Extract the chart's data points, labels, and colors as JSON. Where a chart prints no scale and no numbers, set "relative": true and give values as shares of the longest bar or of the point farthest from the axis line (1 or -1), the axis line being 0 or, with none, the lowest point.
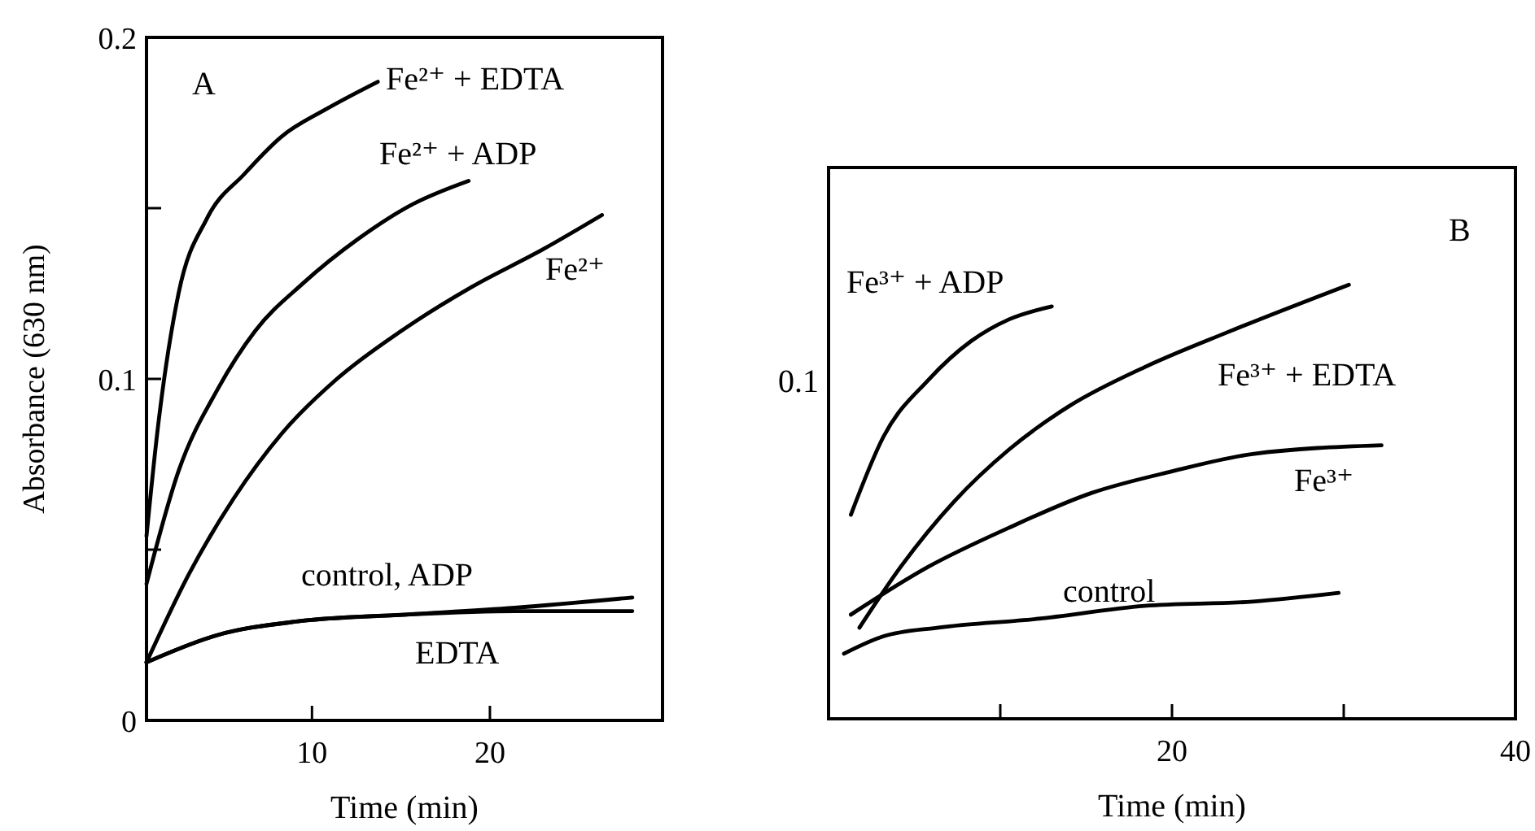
{
  "chart_data": [
    {
      "type": "line",
      "xlabel": "Time (min)",
      "ylabel": "Absorbance (630 nm)",
      "xlim": [
        0.7,
        29.7
      ],
      "ylim": [
        0,
        0.2
      ],
      "xticks": [
        10,
        20
      ],
      "yticks": [
        0,
        {
          "value": 0.05,
          "label": null
        },
        0.1,
        {
          "value": 0.15,
          "label": null
        },
        0.2
      ],
      "annotations": [
        "A"
      ],
      "series": [
        {
          "name": "Fe²⁺ + EDTA",
          "color": "#000000",
          "x": [
            0.7,
            1.3,
            2.5,
            4.1,
            6.2,
            8.3,
            10.8,
            13.7
          ],
          "values": [
            0.054,
            0.084,
            0.125,
            0.147,
            0.16,
            0.171,
            0.179,
            0.187
          ]
        },
        {
          "name": "Fe²⁺ + ADP",
          "color": "#000000",
          "x": [
            0.7,
            2.5,
            4.7,
            6.8,
            9.5,
            12.6,
            15.6,
            18.8
          ],
          "values": [
            0.04,
            0.073,
            0.097,
            0.114,
            0.128,
            0.141,
            0.151,
            0.158
          ]
        },
        {
          "name": "Fe²⁺",
          "color": "#000000",
          "x": [
            0.7,
            3.1,
            5.6,
            8.3,
            11.4,
            15.0,
            19.0,
            23.0,
            26.3
          ],
          "values": [
            0.017,
            0.043,
            0.065,
            0.084,
            0.1,
            0.114,
            0.127,
            0.138,
            0.148
          ]
        },
        {
          "name": "control, ADP",
          "color": "#000000",
          "x": [
            0.7,
            4.7,
            9.2,
            15.3,
            21.4,
            28.0
          ],
          "values": [
            0.017,
            0.025,
            0.029,
            0.031,
            0.033,
            0.036
          ]
        },
        {
          "name": "EDTA",
          "color": "#000000",
          "x": [
            0.7,
            4.7,
            9.2,
            15.3,
            21.4,
            28.0
          ],
          "values": [
            0.017,
            0.025,
            0.029,
            0.031,
            0.032,
            0.032
          ]
        }
      ]
    },
    {
      "type": "line",
      "xlabel": "Time (min)",
      "xlim": [
        0,
        40
      ],
      "xticks": [
        {
          "value": 10,
          "label": null
        },
        20,
        {
          "value": 30,
          "label": null
        },
        40
      ],
      "relative": true,
      "annotations": [
        "B",
        "0.1"
      ],
      "series": [
        {
          "name": "Fe³⁺ + ADP",
          "color": "#000000",
          "x": [
            1.3,
            3.2,
            5.8,
            8.3,
            10.5,
            13.0
          ],
          "values": [
            0.47,
            0.65,
            0.78,
            0.87,
            0.92,
            0.95
          ]
        },
        {
          "name": "Fe³⁺ + EDTA",
          "color": "#000000",
          "x": [
            1.8,
            4.2,
            7.3,
            10.5,
            14.0,
            18.4,
            23.2,
            30.3
          ],
          "values": [
            0.21,
            0.35,
            0.5,
            0.62,
            0.72,
            0.81,
            0.89,
            1
          ]
        },
        {
          "name": "Fe³⁺",
          "color": "#000000",
          "x": [
            1.3,
            5.8,
            10.5,
            15.3,
            20.0,
            24.7,
            32.2
          ],
          "values": [
            0.24,
            0.35,
            0.44,
            0.52,
            0.57,
            0.61,
            0.63
          ]
        },
        {
          "name": "control",
          "color": "#000000",
          "x": [
            0.9,
            3.2,
            6.4,
            12.1,
            18.4,
            24.7,
            29.7
          ],
          "values": [
            0.15,
            0.19,
            0.21,
            0.23,
            0.26,
            0.27,
            0.29
          ]
        }
      ]
    }
  ]
}
